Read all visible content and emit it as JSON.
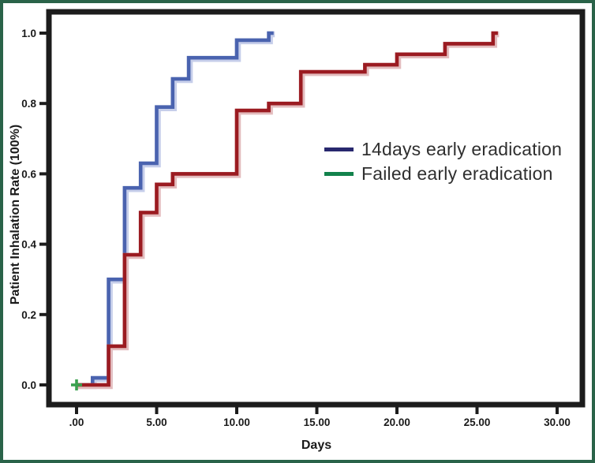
{
  "figure": {
    "border_color": "#2A6349",
    "background_color": "#FFFFFF",
    "plot_border_color": "#1C1C1C"
  },
  "chart_data": {
    "type": "line",
    "subtype": "step-survival-curve",
    "title": "",
    "xlabel": "Days",
    "ylabel": "Patient Inhalation Rate (100%)",
    "grid": false,
    "legend_position": "inside-right",
    "x_ticks": [
      ".00",
      "5.00",
      "10.00",
      "15.00",
      "20.00",
      "25.00",
      "30.00"
    ],
    "x_tick_values": [
      0,
      5,
      10,
      15,
      20,
      25,
      30
    ],
    "y_ticks": [
      "0.0",
      "0.2",
      "0.4",
      "0.6",
      "0.8",
      "1.0"
    ],
    "y_tick_values": [
      0,
      0.2,
      0.4,
      0.6,
      0.8,
      1.0
    ],
    "xlim": [
      -1.7,
      31.6
    ],
    "ylim": [
      -0.06,
      1.07
    ],
    "origin_marker": {
      "shape": "plus",
      "color": "#3BA14F",
      "x": 0,
      "y": 0
    },
    "series": [
      {
        "name": "14days early eradication",
        "legend_color": "#28286E",
        "line_color": "#4A63AF",
        "halo_color": "#C6CEEA",
        "steps_days_rate": [
          [
            0,
            0
          ],
          [
            1,
            0.02
          ],
          [
            2,
            0.3
          ],
          [
            3,
            0.56
          ],
          [
            4,
            0.63
          ],
          [
            5,
            0.79
          ],
          [
            6,
            0.87
          ],
          [
            7,
            0.93
          ],
          [
            10,
            0.98
          ],
          [
            12,
            1.0
          ]
        ],
        "end_day": 12.3
      },
      {
        "name": "Failed early eradication",
        "legend_color": "#12824C",
        "line_color": "#9B1B21",
        "halo_color": "#E3BCBE",
        "steps_days_rate": [
          [
            0,
            0
          ],
          [
            2,
            0.11
          ],
          [
            3,
            0.37
          ],
          [
            4,
            0.49
          ],
          [
            5,
            0.57
          ],
          [
            6,
            0.6
          ],
          [
            10,
            0.78
          ],
          [
            12,
            0.8
          ],
          [
            14,
            0.89
          ],
          [
            18,
            0.91
          ],
          [
            20,
            0.94
          ],
          [
            23,
            0.97
          ],
          [
            26,
            1.0
          ]
        ],
        "end_day": 26.3
      }
    ]
  }
}
